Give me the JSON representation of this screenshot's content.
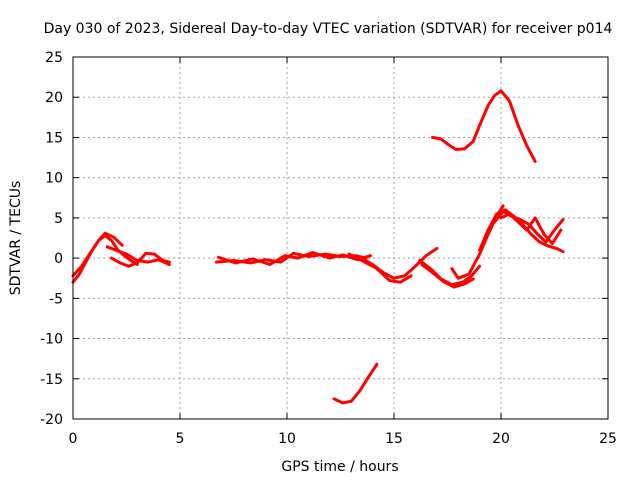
{
  "chart_data": {
    "type": "line",
    "title": "Day 030 of 2023, Sidereal Day-to-day VTEC variation (SDTVAR) for receiver p014",
    "xlabel": "GPS time / hours",
    "ylabel": "SDTVAR / TECUs",
    "xlim": [
      0,
      25
    ],
    "ylim": [
      -20,
      25
    ],
    "xticks": [
      0,
      5,
      10,
      15,
      20,
      25
    ],
    "yticks": [
      -20,
      -15,
      -10,
      -5,
      0,
      5,
      10,
      15,
      20,
      25
    ],
    "xtick_labels": [
      "0",
      "5",
      "10",
      "15",
      "20",
      "25"
    ],
    "ytick_labels": [
      "-20",
      "-15",
      "-10",
      "-5",
      "0",
      "5",
      "10",
      "15",
      "20",
      "25"
    ],
    "grid": true,
    "color": "#ff0000",
    "series": [
      {
        "name": "seg-1",
        "x": [
          0.0,
          0.3,
          0.6,
          0.9,
          1.2,
          1.5,
          1.8,
          2.1,
          2.4,
          2.7,
          3.0
        ],
        "y": [
          -3.0,
          -2.0,
          -0.5,
          1.0,
          2.2,
          2.8,
          2.2,
          1.0,
          0.3,
          -0.3,
          -0.8
        ]
      },
      {
        "name": "seg-2",
        "x": [
          0.0,
          0.4,
          0.8,
          1.2,
          1.5,
          1.9,
          2.3
        ],
        "y": [
          -2.2,
          -1.0,
          0.6,
          2.2,
          3.1,
          2.6,
          1.6
        ]
      },
      {
        "name": "seg-3",
        "x": [
          1.8,
          2.2,
          2.6,
          3.0,
          3.4,
          3.8,
          4.2,
          4.5
        ],
        "y": [
          0.0,
          -0.6,
          -1.0,
          -0.6,
          0.6,
          0.5,
          -0.3,
          -0.5
        ]
      },
      {
        "name": "seg-4",
        "x": [
          1.6,
          2.0,
          2.5,
          3.0,
          3.5,
          4.0,
          4.5
        ],
        "y": [
          1.4,
          1.0,
          0.5,
          -0.3,
          -0.5,
          -0.2,
          -0.8
        ]
      },
      {
        "name": "seg-5",
        "x": [
          6.7,
          7.5,
          8.3,
          9.0,
          9.7,
          10.3,
          11.0,
          11.8,
          12.5,
          13.2,
          13.7
        ],
        "y": [
          -0.5,
          -0.3,
          -0.6,
          -0.2,
          -0.5,
          0.6,
          0.2,
          0.5,
          0.2,
          0.3,
          0.0
        ]
      },
      {
        "name": "seg-6",
        "x": [
          6.8,
          7.6,
          8.4,
          9.2,
          9.9,
          10.5,
          11.2,
          12.0,
          12.6,
          13.3,
          13.9
        ],
        "y": [
          0.1,
          -0.6,
          -0.1,
          -0.8,
          0.3,
          0.0,
          0.7,
          0.0,
          0.4,
          -0.2,
          0.3
        ]
      },
      {
        "name": "seg-7",
        "x": [
          13.5,
          14.0,
          14.5,
          15.0,
          15.5,
          16.0,
          16.5,
          17.0
        ],
        "y": [
          0.0,
          -0.8,
          -1.8,
          -2.5,
          -2.2,
          -1.0,
          0.3,
          1.2
        ]
      },
      {
        "name": "seg-8",
        "x": [
          12.9,
          13.5,
          14.2,
          14.8,
          15.3,
          15.8
        ],
        "y": [
          0.5,
          -0.3,
          -1.3,
          -2.8,
          -3.0,
          -2.2
        ]
      },
      {
        "name": "seg-9",
        "x": [
          16.2,
          16.7,
          17.2,
          17.7,
          18.2,
          18.6,
          19.0
        ],
        "y": [
          -0.3,
          -1.3,
          -2.6,
          -3.3,
          -3.0,
          -2.3,
          -1.0
        ]
      },
      {
        "name": "seg-10",
        "x": [
          16.3,
          16.8,
          17.3,
          17.8,
          18.3,
          18.7
        ],
        "y": [
          -0.8,
          -1.8,
          -2.9,
          -3.6,
          -3.2,
          -2.6
        ]
      },
      {
        "name": "seg-11",
        "x": [
          17.7,
          18.0,
          18.5,
          19.0,
          19.4,
          19.8,
          20.1
        ],
        "y": [
          -1.3,
          -2.5,
          -2.0,
          0.5,
          3.0,
          5.2,
          6.5
        ]
      },
      {
        "name": "seg-12",
        "x": [
          19.0,
          19.4,
          19.8,
          20.2,
          20.6,
          21.0,
          21.4,
          21.8,
          22.2,
          22.6,
          22.9
        ],
        "y": [
          1.0,
          3.5,
          5.5,
          6.0,
          5.2,
          4.2,
          3.0,
          2.0,
          1.5,
          1.2,
          0.8
        ]
      },
      {
        "name": "seg-13",
        "x": [
          19.7,
          20.1,
          20.5,
          20.9,
          21.3,
          21.7,
          22.1,
          22.5,
          22.9
        ],
        "y": [
          4.5,
          5.8,
          5.2,
          4.8,
          4.2,
          3.0,
          2.0,
          3.5,
          4.8
        ]
      },
      {
        "name": "seg-14",
        "x": [
          20.0,
          20.4,
          20.8,
          21.2,
          21.6,
          22.0,
          22.4,
          22.8
        ],
        "y": [
          5.0,
          5.5,
          4.5,
          3.5,
          5.0,
          3.0,
          1.8,
          3.5
        ]
      },
      {
        "name": "seg-15",
        "x": [
          12.2,
          12.6,
          13.0,
          13.4,
          13.8,
          14.2
        ],
        "y": [
          -17.5,
          -18.0,
          -17.8,
          -16.5,
          -14.8,
          -13.2
        ]
      },
      {
        "name": "seg-16",
        "x": [
          16.8,
          17.2,
          17.6,
          17.9,
          18.3,
          18.7,
          19.0,
          19.4,
          19.7,
          20.0,
          20.4,
          20.8,
          21.2,
          21.6
        ],
        "y": [
          15.0,
          14.8,
          14.0,
          13.5,
          13.6,
          14.5,
          16.5,
          19.0,
          20.2,
          20.8,
          19.5,
          16.5,
          14.0,
          12.0
        ]
      }
    ]
  }
}
